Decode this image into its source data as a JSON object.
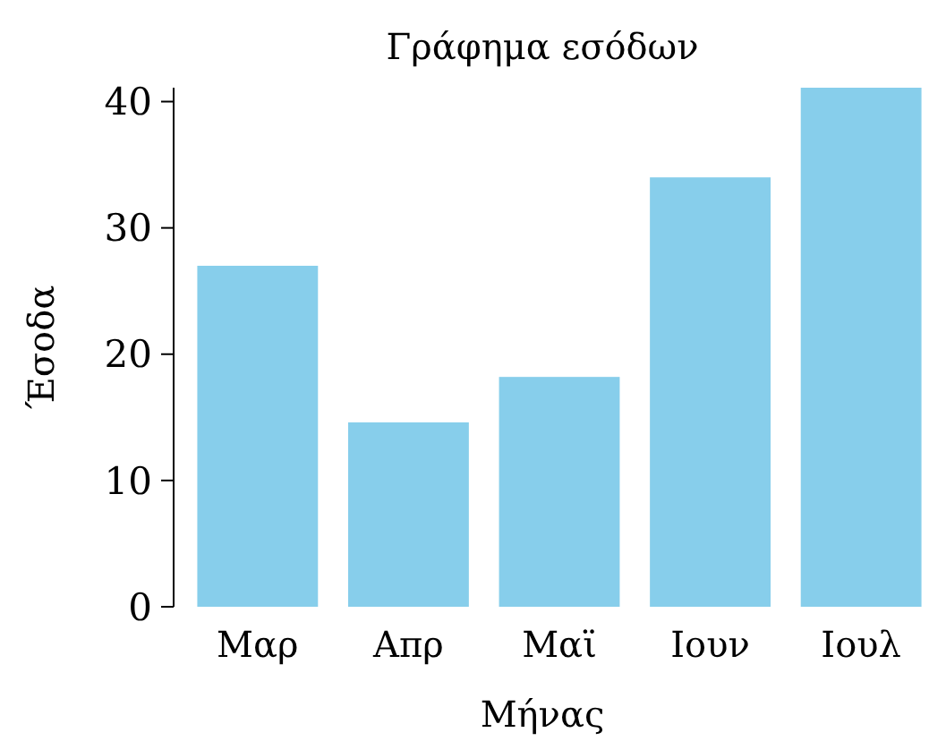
{
  "chart_data": {
    "type": "bar",
    "title": "Γράφημα εσόδων",
    "xlabel": "Μήνας",
    "ylabel": "Έσοδα",
    "categories": [
      "Μαρ",
      "Απρ",
      "Μαϊ",
      "Ιουν",
      "Ιουλ"
    ],
    "values": [
      27,
      14.6,
      18.2,
      34,
      41.1
    ],
    "color": "#87ceeb",
    "ylim": [
      0,
      41.1
    ],
    "yticks": [
      0,
      10,
      20,
      30,
      40
    ],
    "grid": false
  }
}
